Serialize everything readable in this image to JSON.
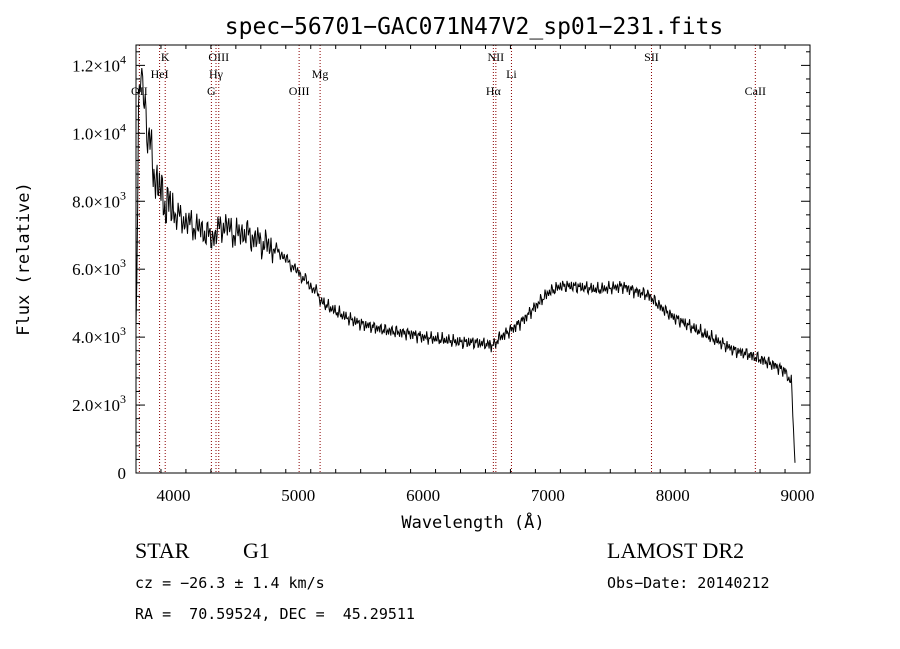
{
  "chart_data": {
    "type": "line",
    "title": "spec−56701−GAC071N47V2_sp01−231.fits",
    "xlabel": "Wavelength (Å)",
    "ylabel": "Flux (relative)",
    "xlim": [
      3700,
      9100
    ],
    "ylim": [
      0,
      12600
    ],
    "x_ticks": [
      4000,
      5000,
      6000,
      7000,
      8000,
      9000
    ],
    "y_ticks": [
      {
        "value": 0,
        "mantissa": "0",
        "exp": ""
      },
      {
        "value": 2000,
        "mantissa": "2.0×10",
        "exp": "3"
      },
      {
        "value": 4000,
        "mantissa": "4.0×10",
        "exp": "3"
      },
      {
        "value": 6000,
        "mantissa": "6.0×10",
        "exp": "3"
      },
      {
        "value": 8000,
        "mantissa": "8.0×10",
        "exp": "3"
      },
      {
        "value": 10000,
        "mantissa": "1.0×10",
        "exp": "4"
      },
      {
        "value": 12000,
        "mantissa": "1.2×10",
        "exp": "4"
      }
    ],
    "lines": [
      {
        "label": "OII",
        "wavelength": 3727,
        "row": 3
      },
      {
        "label": "K",
        "wavelength": 3934,
        "row": 1
      },
      {
        "label": "HeI",
        "wavelength": 3889,
        "row": 2
      },
      {
        "label": "OIII",
        "wavelength": 4363,
        "row": 1
      },
      {
        "label": "Hγ",
        "wavelength": 4341,
        "row": 2
      },
      {
        "label": "G",
        "wavelength": 4304,
        "row": 3
      },
      {
        "label": "OIII",
        "wavelength": 5007,
        "row": 3
      },
      {
        "label": "Mg",
        "wavelength": 5175,
        "row": 2
      },
      {
        "label": "NII",
        "wavelength": 6583,
        "row": 1
      },
      {
        "label": "Hα",
        "wavelength": 6563,
        "row": 3
      },
      {
        "label": "Li",
        "wavelength": 6708,
        "row": 2
      },
      {
        "label": "SII",
        "wavelength": 7830,
        "row": 1
      },
      {
        "label": "CaII",
        "wavelength": 8662,
        "row": 3
      }
    ],
    "series": [
      {
        "x": [
          3700,
          3720,
          3740,
          3760,
          3780,
          3800,
          3850,
          3900,
          3950,
          4000,
          4050,
          4100,
          4150,
          4200,
          4250,
          4300,
          4350,
          4400,
          4450,
          4500,
          4550,
          4600,
          4650,
          4700,
          4750,
          4800,
          4850,
          4900,
          4950,
          5000,
          5050,
          5100,
          5150,
          5200,
          5300,
          5400,
          5500,
          5600,
          5700,
          5800,
          5900,
          6000,
          6100,
          6200,
          6300,
          6400,
          6500,
          6563,
          6600,
          6700,
          6800,
          6900,
          7000,
          7100,
          7200,
          7300,
          7400,
          7500,
          7600,
          7700,
          7800,
          7900,
          8000,
          8100,
          8200,
          8300,
          8400,
          8500,
          8600,
          8700,
          8800,
          8900,
          8950,
          8980
        ],
        "y": [
          4500,
          10500,
          12000,
          11000,
          10000,
          9800,
          8800,
          8200,
          7900,
          7700,
          7500,
          7400,
          7300,
          7200,
          7100,
          6900,
          7100,
          7300,
          7200,
          7000,
          7100,
          7000,
          6900,
          6800,
          6700,
          6600,
          6500,
          6300,
          6100,
          5900,
          5700,
          5500,
          5300,
          5000,
          4750,
          4550,
          4400,
          4300,
          4200,
          4150,
          4100,
          4000,
          3950,
          3900,
          3850,
          3850,
          3800,
          3750,
          3950,
          4200,
          4500,
          4900,
          5300,
          5500,
          5500,
          5450,
          5400,
          5450,
          5500,
          5350,
          5250,
          4900,
          4600,
          4400,
          4200,
          4000,
          3800,
          3600,
          3500,
          3350,
          3200,
          3000,
          2700,
          300
        ]
      }
    ]
  },
  "info": {
    "class": "STAR",
    "subclass": "G1",
    "survey": "LAMOST DR2",
    "cz": "cz = −26.3 ± 1.4 km/s",
    "obs_date": "Obs−Date: 20140212",
    "coords": "RA =  70.59524, DEC =  45.29511"
  }
}
